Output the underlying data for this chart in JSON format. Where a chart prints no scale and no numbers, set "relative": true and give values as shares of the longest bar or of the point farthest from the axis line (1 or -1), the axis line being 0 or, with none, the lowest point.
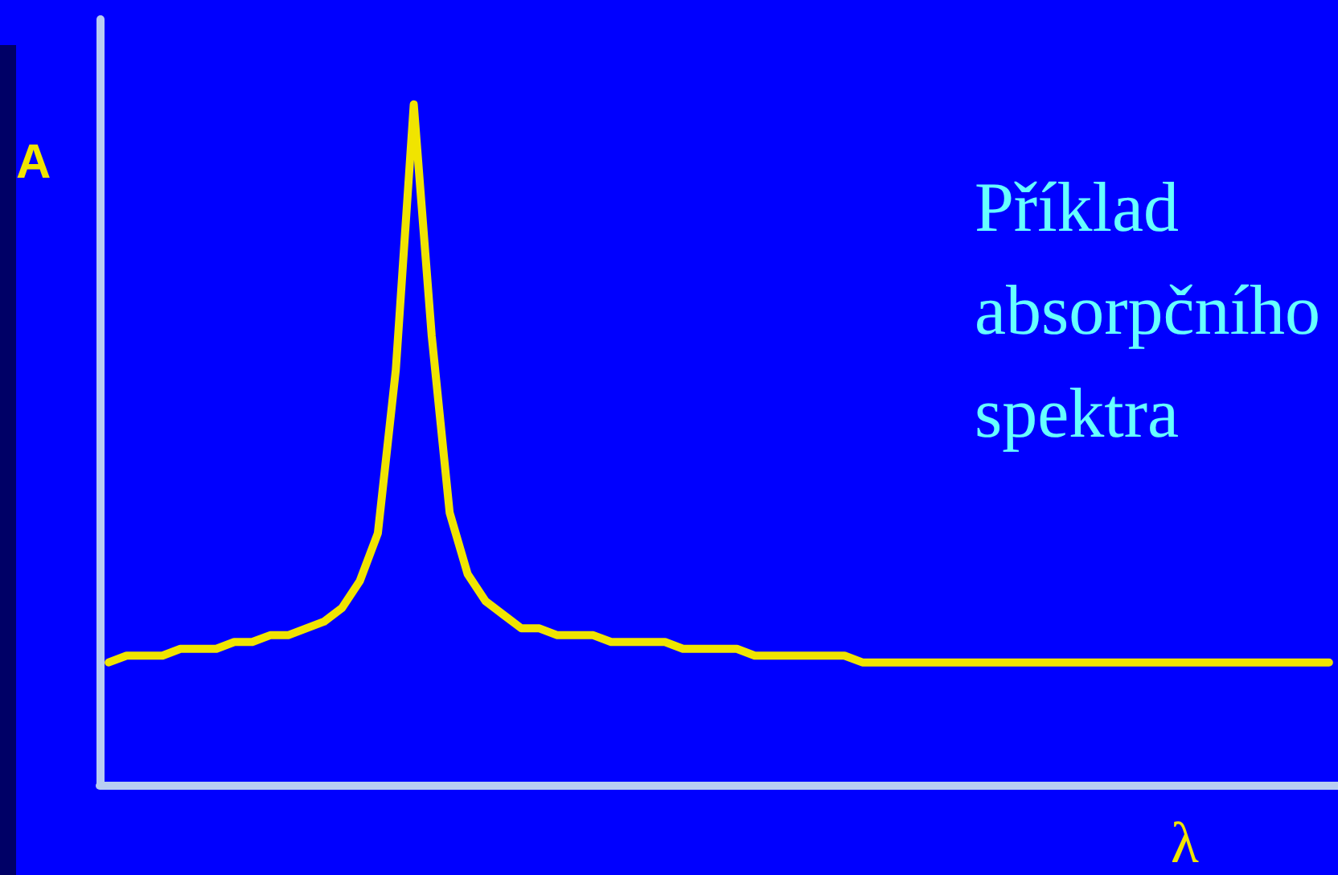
{
  "chart_data": {
    "type": "line",
    "title": "Příklad\nabsorpčního\nspektra",
    "xlabel": "λ",
    "ylabel": "A",
    "relative": true,
    "grid": false,
    "marker": "none",
    "line_style": "solid",
    "categories": [
      null,
      null,
      null,
      null,
      null,
      null,
      null,
      null,
      null,
      null,
      null,
      null,
      null,
      null,
      null,
      null,
      null,
      null,
      null,
      null,
      null,
      null,
      null,
      null,
      null,
      null,
      null,
      null,
      null,
      null,
      null,
      null,
      null,
      null,
      null,
      null,
      null,
      null,
      null,
      null,
      null,
      null,
      null,
      null,
      null,
      null,
      null,
      null,
      null,
      null,
      null,
      null,
      null,
      null,
      null,
      null,
      null,
      null,
      null,
      null,
      null,
      null,
      null,
      null,
      null,
      null,
      null,
      null,
      null
    ],
    "series": [
      {
        "color": "#f0e400",
        "values": [
          0.18,
          0.19,
          0.19,
          0.19,
          0.2,
          0.2,
          0.2,
          0.21,
          0.21,
          0.22,
          0.22,
          0.23,
          0.24,
          0.26,
          0.3,
          0.37,
          0.61,
          1,
          0.66,
          0.4,
          0.31,
          0.27,
          0.25,
          0.23,
          0.23,
          0.22,
          0.22,
          0.22,
          0.21,
          0.21,
          0.21,
          0.21,
          0.2,
          0.2,
          0.2,
          0.2,
          0.19,
          0.19,
          0.19,
          0.19,
          0.19,
          0.19,
          0.18,
          0.18,
          0.18,
          0.18,
          0.18,
          0.18,
          0.18,
          0.18,
          0.18,
          0.18,
          0.18,
          0.18,
          0.18,
          0.18,
          0.18,
          0.18,
          0.18,
          0.18,
          0.18,
          0.18,
          0.18,
          0.18,
          0.18,
          0.18,
          0.18,
          0.18,
          0.18
        ]
      }
    ]
  }
}
